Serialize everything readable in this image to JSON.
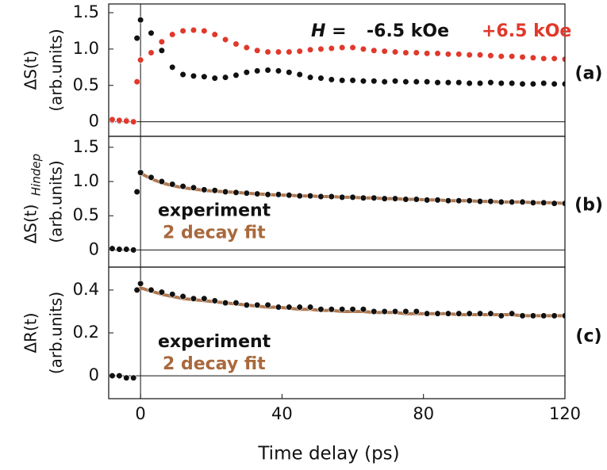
{
  "chart_data": [
    {
      "type": "scatter",
      "ylabel": [
        "ΔS(t)",
        "(arb.units)"
      ],
      "panel_label": "(a)",
      "annotation": "H =",
      "legend": "top-right",
      "xlim": [
        -9,
        120
      ],
      "ylim": [
        -0.2,
        1.62
      ],
      "zero_lines": true,
      "yticks": [
        0,
        0.5,
        {
          "value": 1,
          "label": "1.0"
        },
        1.5
      ],
      "x": [
        -8,
        -6,
        -4,
        -2,
        -1,
        0,
        3,
        6,
        9,
        12,
        15,
        18,
        21,
        24,
        27,
        30,
        33,
        36,
        39,
        42,
        45,
        48,
        51,
        54,
        57,
        60,
        63,
        66,
        69,
        72,
        75,
        78,
        81,
        84,
        87,
        90,
        93,
        96,
        99,
        102,
        105,
        108,
        111,
        114,
        117,
        120
      ],
      "series": [
        {
          "name": "-6.5 kOe",
          "color": "#111111",
          "mode": "markers",
          "values": [
            0.02,
            0.01,
            0.02,
            0.0,
            1.15,
            1.4,
            1.22,
            0.98,
            0.75,
            0.65,
            0.63,
            0.62,
            0.6,
            0.61,
            0.64,
            0.68,
            0.7,
            0.71,
            0.7,
            0.68,
            0.65,
            0.61,
            0.6,
            0.58,
            0.57,
            0.57,
            0.56,
            0.56,
            0.55,
            0.56,
            0.55,
            0.55,
            0.55,
            0.54,
            0.54,
            0.54,
            0.53,
            0.53,
            0.54,
            0.53,
            0.53,
            0.52,
            0.52,
            0.53,
            0.52,
            0.52
          ]
        },
        {
          "name": "+6.5 kOe",
          "color": "#e0392c",
          "mode": "markers",
          "values": [
            0.03,
            0.02,
            0.01,
            0.0,
            0.55,
            0.85,
            0.95,
            1.1,
            1.2,
            1.25,
            1.26,
            1.25,
            1.2,
            1.13,
            1.07,
            1.02,
            0.98,
            0.96,
            0.96,
            0.96,
            0.97,
            0.99,
            1.0,
            1.01,
            1.02,
            1.02,
            1.0,
            0.98,
            0.97,
            0.96,
            0.95,
            0.95,
            0.94,
            0.94,
            0.93,
            0.93,
            0.92,
            0.92,
            0.91,
            0.9,
            0.9,
            0.89,
            0.88,
            0.87,
            0.87,
            0.86
          ]
        }
      ]
    },
    {
      "type": "scatter",
      "ylabel": [
        "ΔS(t)",
        "(arb.units)"
      ],
      "ylabel_subscript": "Hindep",
      "panel_label": "(b)",
      "legend": "center-left",
      "xlim": [
        -9,
        120
      ],
      "ylim": [
        -0.25,
        1.66
      ],
      "zero_lines": true,
      "yticks": [
        0,
        0.5,
        {
          "value": 1,
          "label": "1.0"
        },
        1.5
      ],
      "x": [
        -8,
        -6,
        -4,
        -2,
        -1,
        0,
        3,
        6,
        9,
        12,
        15,
        18,
        21,
        24,
        27,
        30,
        33,
        36,
        39,
        42,
        45,
        48,
        51,
        54,
        57,
        60,
        63,
        66,
        69,
        72,
        75,
        78,
        81,
        84,
        87,
        90,
        93,
        96,
        99,
        102,
        105,
        108,
        111,
        114,
        117,
        120
      ],
      "series": [
        {
          "name": "experiment",
          "color": "#111111",
          "mode": "markers",
          "values": [
            0.02,
            0.01,
            0.01,
            0.0,
            0.85,
            1.13,
            1.06,
            1.0,
            0.96,
            0.93,
            0.91,
            0.88,
            0.87,
            0.85,
            0.84,
            0.83,
            0.82,
            0.81,
            0.81,
            0.8,
            0.79,
            0.79,
            0.78,
            0.78,
            0.77,
            0.77,
            0.76,
            0.76,
            0.75,
            0.75,
            0.74,
            0.74,
            0.73,
            0.73,
            0.72,
            0.72,
            0.72,
            0.71,
            0.71,
            0.7,
            0.7,
            0.7,
            0.69,
            0.69,
            0.68,
            0.68
          ]
        },
        {
          "name": "2 decay fit",
          "color": "#a9693c",
          "mode": "line",
          "values": [
            null,
            null,
            null,
            null,
            null,
            1.12,
            1.04,
            0.98,
            0.94,
            0.91,
            0.89,
            0.87,
            0.86,
            0.85,
            0.84,
            0.83,
            0.82,
            0.81,
            0.8,
            0.8,
            0.79,
            0.79,
            0.78,
            0.78,
            0.77,
            0.77,
            0.76,
            0.76,
            0.75,
            0.75,
            0.74,
            0.74,
            0.73,
            0.73,
            0.72,
            0.72,
            0.72,
            0.71,
            0.71,
            0.7,
            0.7,
            0.7,
            0.69,
            0.69,
            0.69,
            0.68
          ]
        }
      ]
    },
    {
      "type": "scatter",
      "ylabel": [
        "ΔR(t)",
        "(arb.units)"
      ],
      "panel_label": "(c)",
      "legend": "center-left",
      "xlabel": "Time delay (ps)",
      "xlim": [
        -9,
        120
      ],
      "ylim": [
        -0.107,
        0.507
      ],
      "zero_lines": true,
      "xticks": [
        0,
        40,
        80,
        120
      ],
      "yticks": [
        0,
        0.2,
        0.4
      ],
      "x": [
        -8,
        -6,
        -4,
        -2,
        -1,
        0,
        3,
        6,
        9,
        12,
        15,
        18,
        21,
        24,
        27,
        30,
        33,
        36,
        39,
        42,
        45,
        48,
        51,
        54,
        57,
        60,
        63,
        66,
        69,
        72,
        75,
        78,
        81,
        84,
        87,
        90,
        93,
        96,
        99,
        102,
        105,
        108,
        111,
        114,
        117,
        120
      ],
      "series": [
        {
          "name": "experiment",
          "color": "#111111",
          "mode": "markers",
          "values": [
            0.0,
            0.0,
            -0.01,
            -0.01,
            0.4,
            0.43,
            0.4,
            0.39,
            0.38,
            0.37,
            0.36,
            0.36,
            0.35,
            0.34,
            0.34,
            0.33,
            0.33,
            0.33,
            0.32,
            0.32,
            0.32,
            0.32,
            0.31,
            0.31,
            0.31,
            0.31,
            0.31,
            0.3,
            0.3,
            0.3,
            0.3,
            0.3,
            0.29,
            0.29,
            0.29,
            0.29,
            0.29,
            0.29,
            0.29,
            0.28,
            0.29,
            0.28,
            0.28,
            0.28,
            0.28,
            0.28
          ]
        },
        {
          "name": "2 decay fit",
          "color": "#a9693c",
          "mode": "line",
          "values": [
            null,
            null,
            null,
            null,
            null,
            0.41,
            0.395,
            0.38,
            0.37,
            0.36,
            0.355,
            0.35,
            0.345,
            0.34,
            0.335,
            0.33,
            0.325,
            0.32,
            0.32,
            0.315,
            0.31,
            0.31,
            0.305,
            0.305,
            0.3,
            0.3,
            0.3,
            0.295,
            0.295,
            0.295,
            0.29,
            0.29,
            0.29,
            0.29,
            0.29,
            0.285,
            0.285,
            0.285,
            0.285,
            0.285,
            0.285,
            0.28,
            0.28,
            0.28,
            0.28,
            0.28
          ]
        }
      ]
    }
  ]
}
